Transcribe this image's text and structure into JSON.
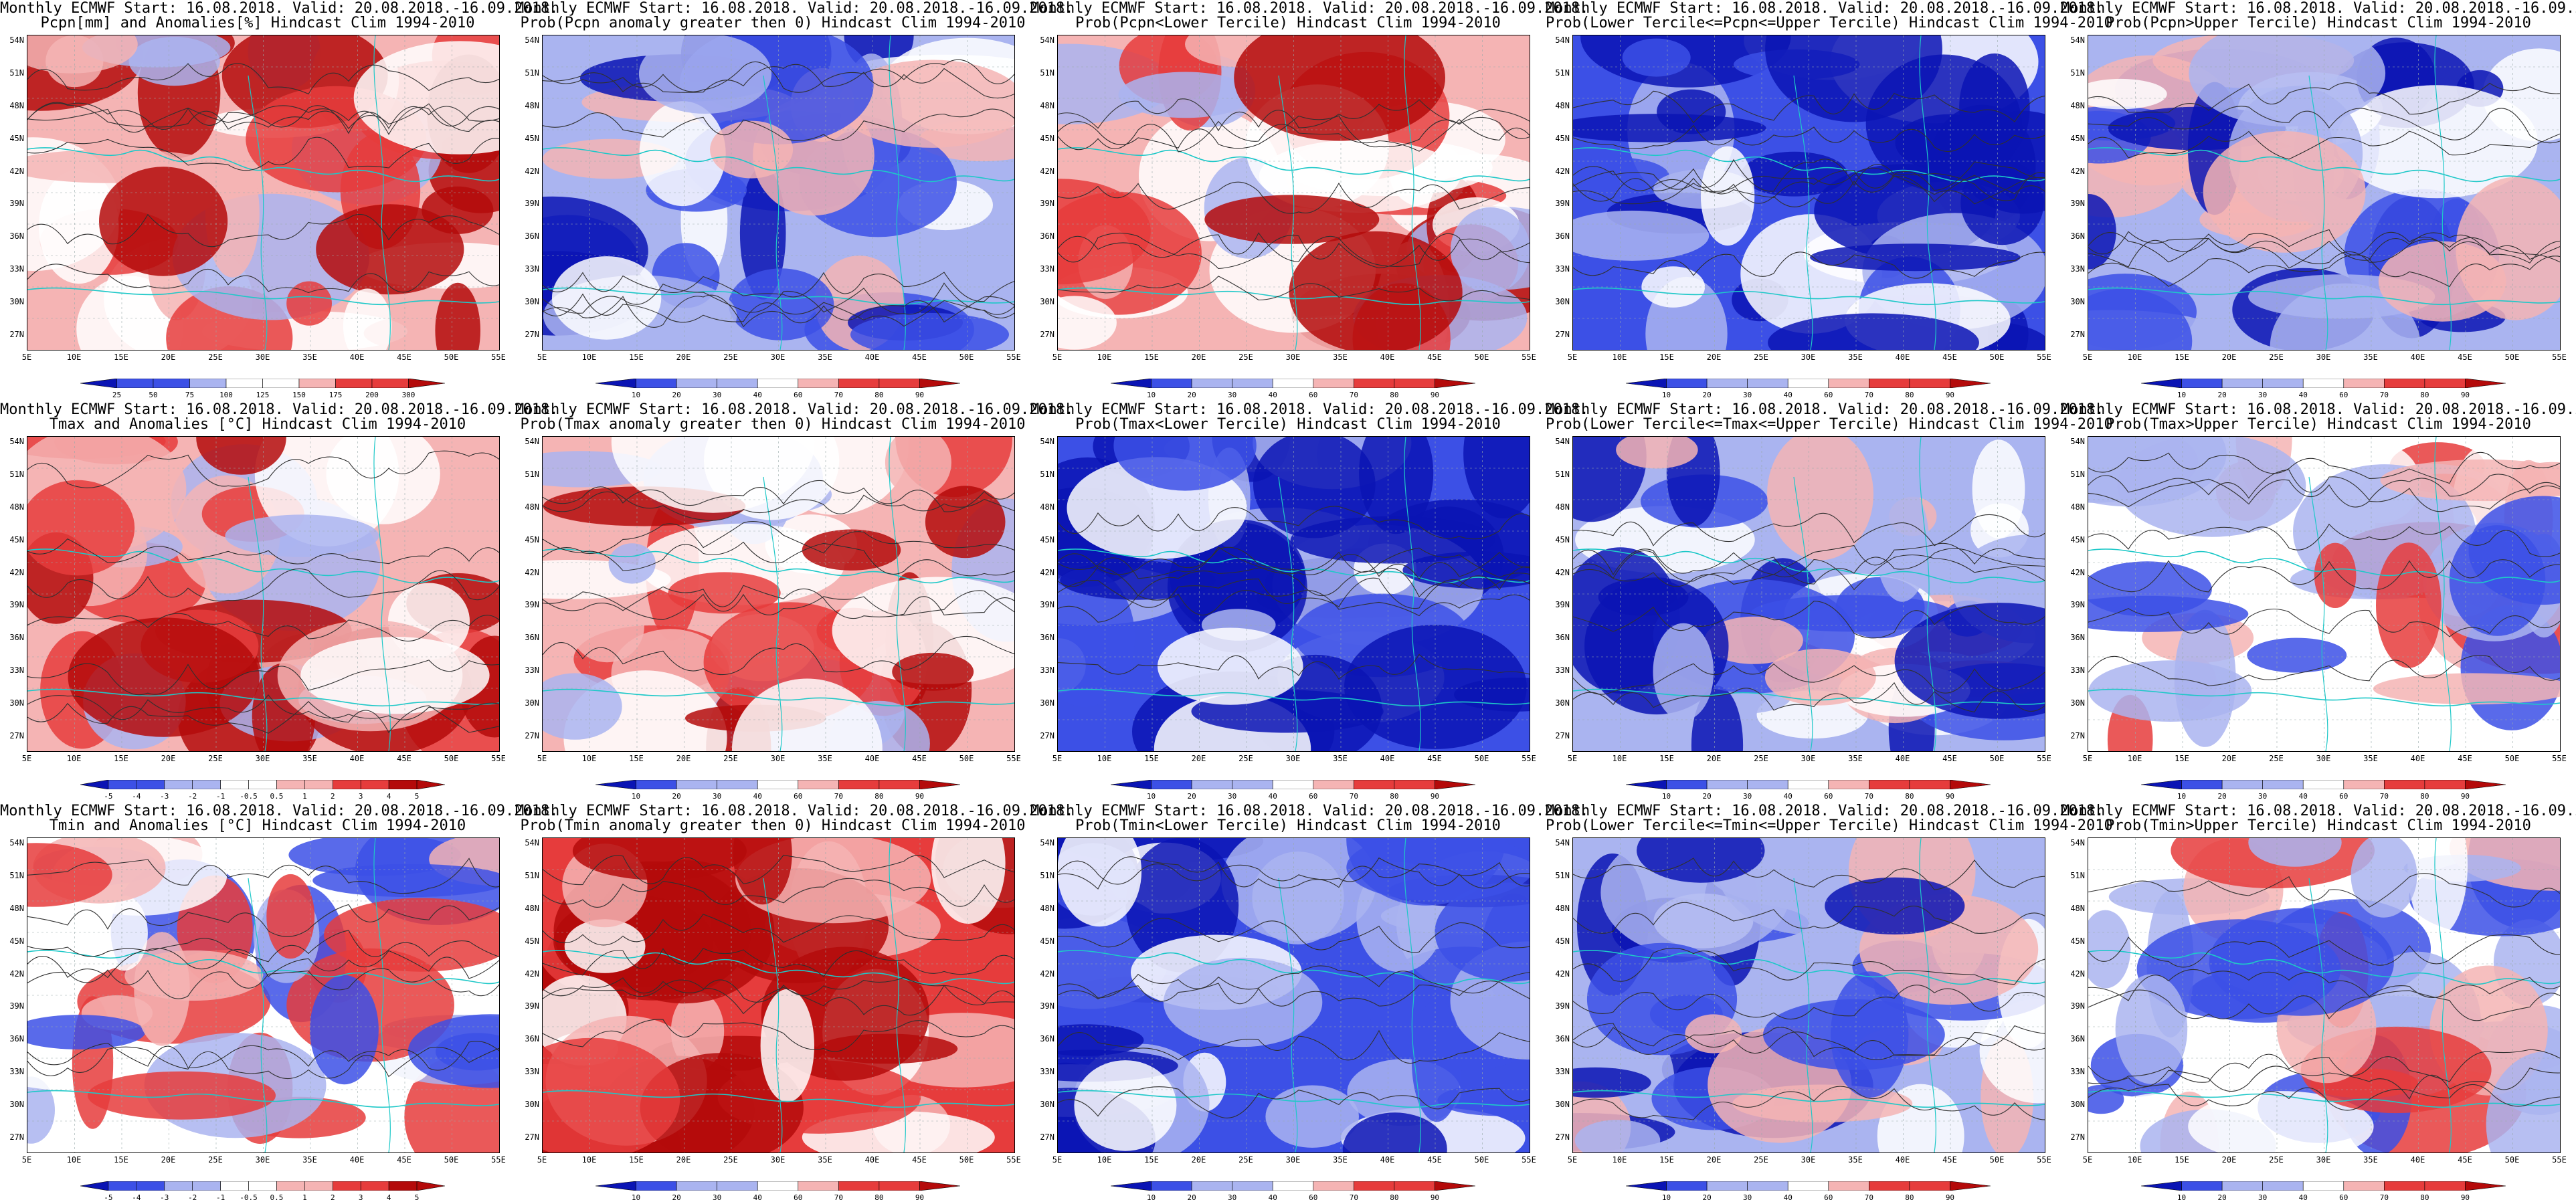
{
  "header_line": "Monthly ECMWF Start: 16.08.2018. Valid: 20.08.2018.-16.09.2018.",
  "lat_labels": [
    "54N",
    "51N",
    "48N",
    "45N",
    "42N",
    "39N",
    "36N",
    "33N",
    "30N",
    "27N"
  ],
  "lon_labels": [
    "5E",
    "10E",
    "15E",
    "20E",
    "25E",
    "30E",
    "35E",
    "40E",
    "45E",
    "50E",
    "55E"
  ],
  "scales": {
    "pcpn": [
      "25",
      "50",
      "75",
      "100",
      "125",
      "150",
      "175",
      "200",
      "300"
    ],
    "anom": [
      "-5",
      "-4",
      "-3",
      "-2",
      "-1",
      "-0.5",
      "0.5",
      "1",
      "2",
      "3",
      "4",
      "5"
    ],
    "prob": [
      "10",
      "20",
      "30",
      "40",
      "60",
      "70",
      "80",
      "90"
    ]
  },
  "colors": {
    "deep_blue": "#0a14b4",
    "blue": "#3c50e6",
    "light_blue": "#aab4f0",
    "white": "#ffffff",
    "light_red": "#f5b4b4",
    "red": "#e63c3c",
    "deep_red": "#b40a0a",
    "contour": "#303030",
    "coast": "#1ec8c8"
  },
  "panels": [
    {
      "row": 0,
      "col": 0,
      "subtitle": "Pcpn[mm] and Anomalies[%] Hindcast Clim 1994-2010",
      "scale": "pcpn",
      "field_level": 0.65
    },
    {
      "row": 0,
      "col": 1,
      "subtitle": "Prob(Pcpn anomaly greater then 0) Hindcast Clim 1994-2010",
      "scale": "prob",
      "field_level": 0.3
    },
    {
      "row": 0,
      "col": 2,
      "subtitle": "Prob(Pcpn<Lower Tercile) Hindcast Clim 1994-2010",
      "scale": "prob",
      "field_level": 0.6
    },
    {
      "row": 0,
      "col": 3,
      "subtitle": "Prob(Lower Tercile<=Pcpn<=Upper Tercile) Hindcast Clim 1994-2010",
      "scale": "prob",
      "field_level": 0.2
    },
    {
      "row": 0,
      "col": 4,
      "subtitle": "Prob(Pcpn>Upper Tercile) Hindcast Clim 1994-2010",
      "scale": "prob",
      "field_level": 0.3
    },
    {
      "row": 1,
      "col": 0,
      "subtitle": "Tmax and Anomalies [°C] Hindcast Clim 1994-2010",
      "scale": "anom",
      "field_level": 0.62
    },
    {
      "row": 1,
      "col": 1,
      "subtitle": "Prob(Tmax anomaly greater then 0) Hindcast Clim 1994-2010",
      "scale": "prob",
      "field_level": 0.72
    },
    {
      "row": 1,
      "col": 2,
      "subtitle": "Prob(Tmax<Lower Tercile) Hindcast Clim 1994-2010",
      "scale": "prob",
      "field_level": 0.18
    },
    {
      "row": 1,
      "col": 3,
      "subtitle": "Prob(Lower Tercile<=Tmax<=Upper Tercile) Hindcast Clim 1994-2010",
      "scale": "prob",
      "field_level": 0.28
    },
    {
      "row": 1,
      "col": 4,
      "subtitle": "Prob(Tmax>Upper Tercile) Hindcast Clim 1994-2010",
      "scale": "prob",
      "field_level": 0.55
    },
    {
      "row": 2,
      "col": 0,
      "subtitle": "Tmin and Anomalies [°C] Hindcast Clim 1994-2010",
      "scale": "anom",
      "field_level": 0.58
    },
    {
      "row": 2,
      "col": 1,
      "subtitle": "Prob(Tmin anomaly greater then 0) Hindcast Clim 1994-2010",
      "scale": "prob",
      "field_level": 0.75
    },
    {
      "row": 2,
      "col": 2,
      "subtitle": "Prob(Tmin<Lower Tercile) Hindcast Clim 1994-2010",
      "scale": "prob",
      "field_level": 0.15
    },
    {
      "row": 2,
      "col": 3,
      "subtitle": "Prob(Lower Tercile<=Tmin<=Upper Tercile) Hindcast Clim 1994-2010",
      "scale": "prob",
      "field_level": 0.3
    },
    {
      "row": 2,
      "col": 4,
      "subtitle": "Prob(Tmin>Upper Tercile) Hindcast Clim 1994-2010",
      "scale": "prob",
      "field_level": 0.52
    }
  ]
}
